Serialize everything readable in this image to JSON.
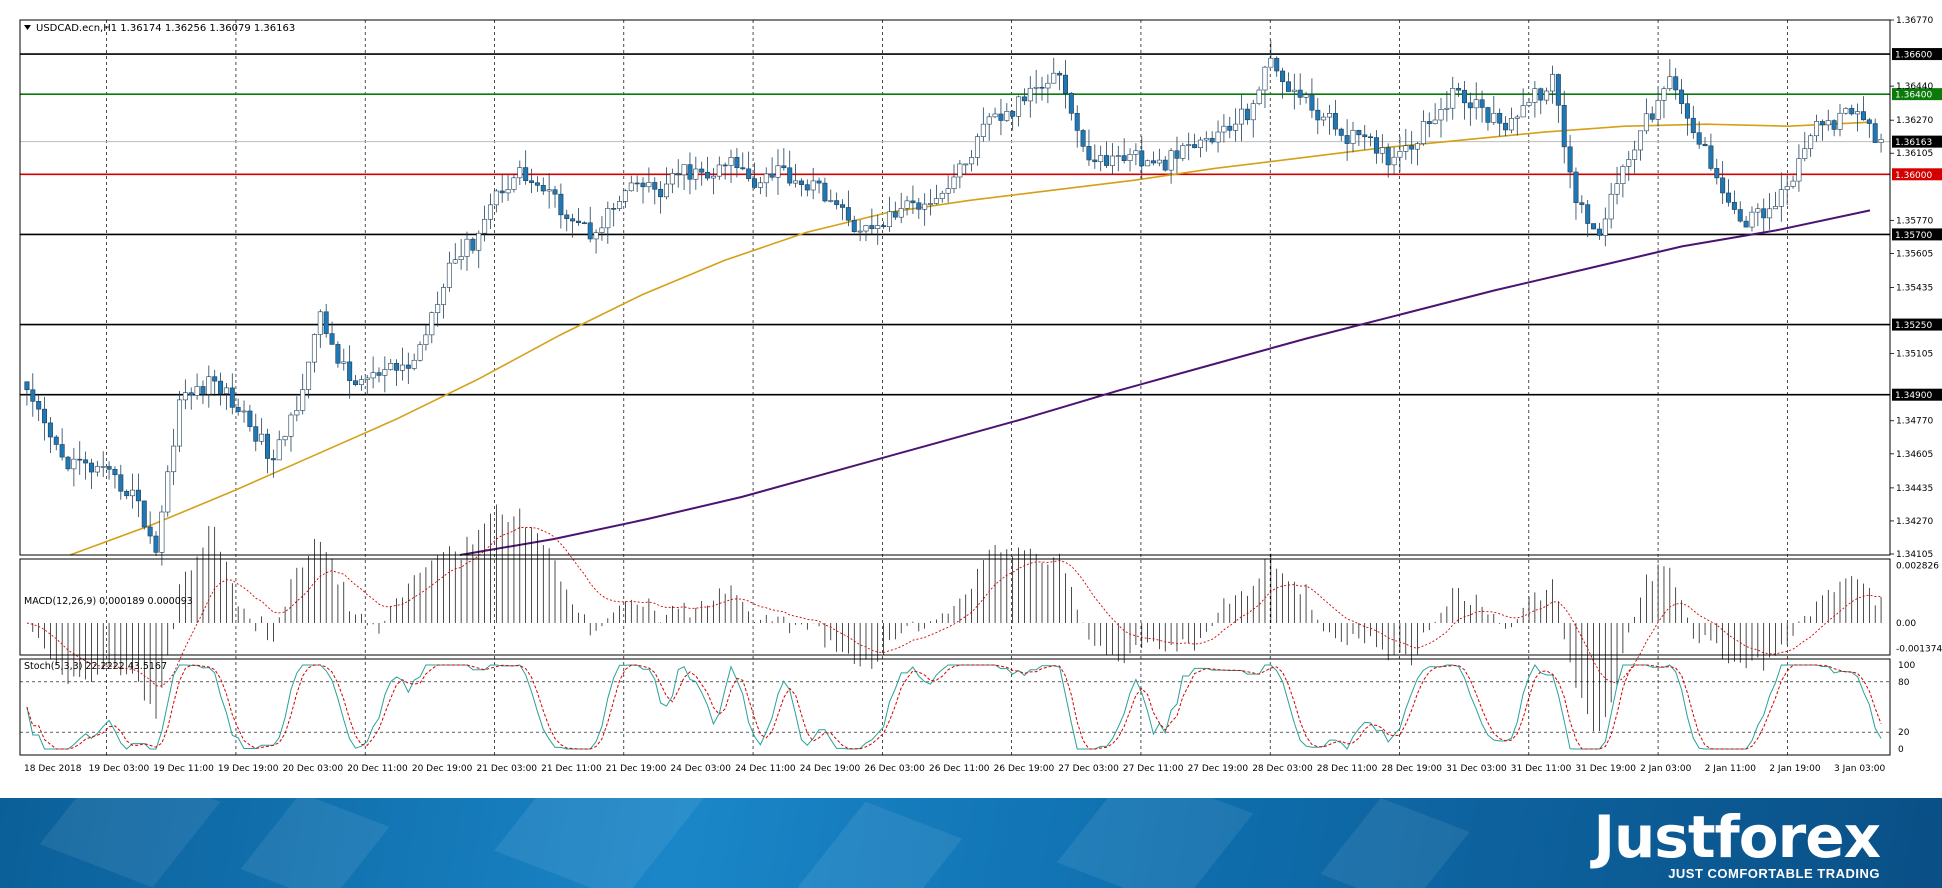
{
  "window": {
    "header": "USDCAD.ecn,H1  1.36174 1.36256 1.36079 1.36163"
  },
  "colors": {
    "bull_candle": "#ffffff",
    "bear_candle": "#1f78b4",
    "ma_fast": "#d4a017",
    "ma_slow": "#4b1470",
    "resistance_green": "#0a7a0a",
    "support_red": "#d40000",
    "level_black": "#000000",
    "price_tag_current": "#000000",
    "stoch_main": "#2aa198",
    "stoch_signal": "#d40000"
  },
  "chart_data": {
    "type": "candlestick",
    "symbol": "USDCAD.ecn",
    "timeframe": "H1",
    "ylim": [
      1.341,
      1.3677
    ],
    "price_ticks": [
      "1.36770",
      "1.36440",
      "1.36270",
      "1.36105",
      "1.35770",
      "1.35605",
      "1.35435",
      "1.35105",
      "1.34770",
      "1.34605",
      "1.34435",
      "1.34270",
      "1.34105"
    ],
    "levels": [
      {
        "value": 1.366,
        "label": "1.36600",
        "color": "#000000"
      },
      {
        "value": 1.364,
        "label": "1.36400",
        "color": "#0a7a0a"
      },
      {
        "value": 1.36163,
        "label": "1.36163",
        "color": "#000000",
        "current": true
      },
      {
        "value": 1.36,
        "label": "1.36000",
        "color": "#d40000"
      },
      {
        "value": 1.357,
        "label": "1.35700",
        "color": "#000000"
      },
      {
        "value": 1.3525,
        "label": "1.35250",
        "color": "#000000"
      },
      {
        "value": 1.349,
        "label": "1.34900",
        "color": "#000000"
      }
    ],
    "x_labels": [
      "18 Dec 2018",
      "19 Dec 03:00",
      "19 Dec 11:00",
      "19 Dec 19:00",
      "20 Dec 03:00",
      "20 Dec 11:00",
      "20 Dec 19:00",
      "21 Dec 03:00",
      "21 Dec 11:00",
      "21 Dec 19:00",
      "24 Dec 03:00",
      "24 Dec 11:00",
      "24 Dec 19:00",
      "26 Dec 03:00",
      "26 Dec 11:00",
      "26 Dec 19:00",
      "27 Dec 03:00",
      "27 Dec 11:00",
      "27 Dec 19:00",
      "28 Dec 03:00",
      "28 Dec 11:00",
      "28 Dec 19:00",
      "31 Dec 03:00",
      "31 Dec 11:00",
      "31 Dec 19:00",
      "2 Jan 03:00",
      "2 Jan 11:00",
      "2 Jan 19:00",
      "3 Jan 03:00"
    ],
    "close_anchors": [
      [
        0,
        1.3489
      ],
      [
        6,
        1.3458
      ],
      [
        12,
        1.3452
      ],
      [
        18,
        1.3441
      ],
      [
        22,
        1.3413
      ],
      [
        26,
        1.3487
      ],
      [
        32,
        1.3497
      ],
      [
        38,
        1.3476
      ],
      [
        42,
        1.3456
      ],
      [
        46,
        1.3486
      ],
      [
        50,
        1.3528
      ],
      [
        55,
        1.3496
      ],
      [
        60,
        1.3499
      ],
      [
        66,
        1.3506
      ],
      [
        72,
        1.3556
      ],
      [
        76,
        1.3566
      ],
      [
        80,
        1.3591
      ],
      [
        84,
        1.3601
      ],
      [
        88,
        1.3592
      ],
      [
        92,
        1.3581
      ],
      [
        96,
        1.3571
      ],
      [
        100,
        1.3583
      ],
      [
        104,
        1.3595
      ],
      [
        108,
        1.3591
      ],
      [
        112,
        1.3602
      ],
      [
        116,
        1.3598
      ],
      [
        120,
        1.3606
      ],
      [
        124,
        1.3597
      ],
      [
        128,
        1.3603
      ],
      [
        132,
        1.3596
      ],
      [
        136,
        1.3591
      ],
      [
        140,
        1.3576
      ],
      [
        144,
        1.3571
      ],
      [
        148,
        1.3581
      ],
      [
        152,
        1.3586
      ],
      [
        156,
        1.3591
      ],
      [
        160,
        1.3606
      ],
      [
        164,
        1.3626
      ],
      [
        168,
        1.3631
      ],
      [
        172,
        1.3646
      ],
      [
        176,
        1.3651
      ],
      [
        180,
        1.3611
      ],
      [
        184,
        1.3606
      ],
      [
        188,
        1.3611
      ],
      [
        192,
        1.3603
      ],
      [
        196,
        1.3609
      ],
      [
        200,
        1.3616
      ],
      [
        204,
        1.3621
      ],
      [
        208,
        1.3631
      ],
      [
        212,
        1.3656
      ],
      [
        216,
        1.3641
      ],
      [
        220,
        1.3631
      ],
      [
        224,
        1.3621
      ],
      [
        228,
        1.3616
      ],
      [
        232,
        1.3609
      ],
      [
        236,
        1.3616
      ],
      [
        240,
        1.3631
      ],
      [
        244,
        1.3641
      ],
      [
        248,
        1.3631
      ],
      [
        252,
        1.3626
      ],
      [
        256,
        1.3636
      ],
      [
        260,
        1.3646
      ],
      [
        264,
        1.3586
      ],
      [
        268,
        1.3571
      ],
      [
        272,
        1.3606
      ],
      [
        276,
        1.3626
      ],
      [
        280,
        1.3646
      ],
      [
        284,
        1.3621
      ],
      [
        288,
        1.3601
      ],
      [
        292,
        1.3576
      ],
      [
        296,
        1.3581
      ],
      [
        300,
        1.3591
      ],
      [
        304,
        1.3621
      ],
      [
        308,
        1.3626
      ],
      [
        312,
        1.3631
      ],
      [
        316,
        1.3616
      ]
    ],
    "candle_count": 317,
    "ma_fast": {
      "name": "",
      "values": [
        1.341,
        1.3425,
        1.3442,
        1.346,
        1.3478,
        1.3498,
        1.352,
        1.354,
        1.3557,
        1.3571,
        1.3581,
        1.3587,
        1.3592,
        1.3597,
        1.3603,
        1.3608,
        1.3613,
        1.3617,
        1.3621,
        1.3624,
        1.3625,
        1.3624,
        1.3626
      ]
    },
    "ma_slow": {
      "name": "",
      "values": [
        1.341,
        1.3418,
        1.3428,
        1.3439,
        1.3452,
        1.3465,
        1.3478,
        1.3492,
        1.3505,
        1.3518,
        1.353,
        1.3542,
        1.3553,
        1.3564,
        1.3572,
        1.3582
      ]
    },
    "macd": {
      "label": "MACD(12,26,9) 0.000189 0.000093",
      "ticks": [
        "0.002826",
        "0.00",
        "-0.001374"
      ],
      "ylim": [
        -0.00145,
        0.0029
      ]
    },
    "stoch": {
      "label": "Stoch(5,3,3) 22.2222 43.5167",
      "ticks": [
        "100",
        "80",
        "20",
        "0"
      ],
      "levels": [
        80,
        20
      ],
      "ylim": [
        0,
        100
      ]
    }
  },
  "branding": {
    "logo": "Justforex",
    "tagline": "JUST COMFORTABLE TRADING"
  }
}
